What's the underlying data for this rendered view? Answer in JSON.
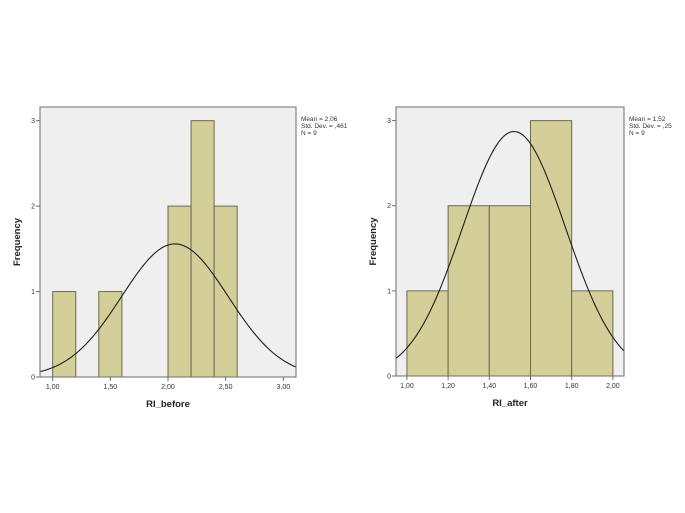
{
  "colors": {
    "plot_background": "#efefef",
    "plot_border": "#6e6e6e",
    "bar_fill": "#d4cf98",
    "bar_stroke": "#6b6a4c",
    "curve": "#1e1e1e",
    "page_background": "#ffffff"
  },
  "chart_data": [
    {
      "type": "bar",
      "subtype": "histogram",
      "title": "",
      "xlabel": "RI_before",
      "ylabel": "Frequency",
      "bins": [
        {
          "start": 1.0,
          "end": 1.2,
          "count": 1
        },
        {
          "start": 1.4,
          "end": 1.6,
          "count": 1
        },
        {
          "start": 2.0,
          "end": 2.2,
          "count": 2
        },
        {
          "start": 2.2,
          "end": 2.4,
          "count": 3
        },
        {
          "start": 2.4,
          "end": 2.6,
          "count": 2
        }
      ],
      "categories": [
        "1.0-1.2",
        "1.2-1.4",
        "1.4-1.6",
        "1.6-1.8",
        "1.8-2.0",
        "2.0-2.2",
        "2.2-2.4",
        "2.4-2.6"
      ],
      "values": [
        1,
        0,
        1,
        0,
        0,
        2,
        3,
        2
      ],
      "bin_width": 0.2,
      "xlim": [
        0.89,
        3.11
      ],
      "ylim": [
        0,
        3.16
      ],
      "x_ticks": [
        "1,00",
        "1,50",
        "2,00",
        "2,50",
        "3,00"
      ],
      "x_tick_values": [
        1.0,
        1.5,
        2.0,
        2.5,
        3.0
      ],
      "y_ticks": [
        "0",
        "1",
        "2",
        "3"
      ],
      "y_tick_values": [
        0,
        1,
        2,
        3
      ],
      "normal_curve": {
        "mean": 2.06,
        "sd": 0.461,
        "n": 9
      },
      "stats_box": [
        "Mean = 2,06",
        "Std. Dev. = ,461",
        "N = 9"
      ],
      "grid": false,
      "legend": "none"
    },
    {
      "type": "bar",
      "subtype": "histogram",
      "title": "",
      "xlabel": "RI_after",
      "ylabel": "Frequency",
      "bins": [
        {
          "start": 1.0,
          "end": 1.2,
          "count": 1
        },
        {
          "start": 1.2,
          "end": 1.4,
          "count": 2
        },
        {
          "start": 1.4,
          "end": 1.6,
          "count": 2
        },
        {
          "start": 1.6,
          "end": 1.8,
          "count": 3
        },
        {
          "start": 1.8,
          "end": 2.0,
          "count": 1
        }
      ],
      "categories": [
        "1.0-1.2",
        "1.2-1.4",
        "1.4-1.6",
        "1.6-1.8",
        "1.8-2.0"
      ],
      "values": [
        1,
        2,
        2,
        3,
        1
      ],
      "bin_width": 0.2,
      "xlim": [
        0.947,
        2.054
      ],
      "ylim": [
        0,
        3.16
      ],
      "x_ticks": [
        "1,00",
        "1,20",
        "1,40",
        "1,60",
        "1,80",
        "2,00"
      ],
      "x_tick_values": [
        1.0,
        1.2,
        1.4,
        1.6,
        1.8,
        2.0
      ],
      "y_ticks": [
        "0",
        "1",
        "2",
        "3"
      ],
      "y_tick_values": [
        0,
        1,
        2,
        3
      ],
      "normal_curve": {
        "mean": 1.52,
        "sd": 0.25,
        "n": 9
      },
      "stats_box": [
        "Mean = 1,52",
        "Std. Dev. = ,25",
        "N = 9"
      ],
      "grid": false,
      "legend": "none"
    }
  ]
}
